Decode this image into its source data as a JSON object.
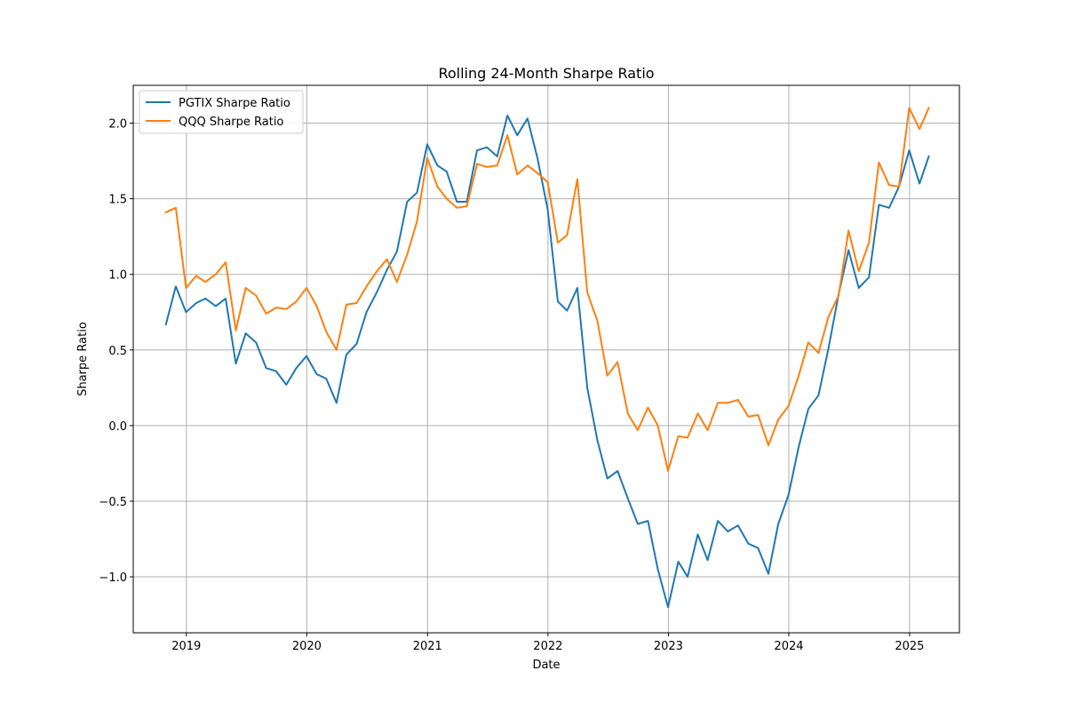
{
  "chart_data": {
    "type": "line",
    "title": "Rolling 24-Month Sharpe Ratio",
    "xlabel": "Date",
    "ylabel": "Sharpe Ratio",
    "xlim": [
      "2018-07-24",
      "2025-06-01"
    ],
    "ylim": [
      -1.37,
      2.25
    ],
    "grid": true,
    "legend": "top-left",
    "x_ticks": [
      "2019",
      "2020",
      "2021",
      "2022",
      "2023",
      "2024",
      "2025"
    ],
    "y_ticks": [
      -1.0,
      -0.5,
      0.0,
      0.5,
      1.0,
      1.5,
      2.0
    ],
    "y_tick_labels": [
      "−1.0",
      "−0.5",
      "0.0",
      "0.5",
      "1.0",
      "1.5",
      "2.0"
    ],
    "x": [
      "2018-10-31",
      "2018-11-30",
      "2018-12-31",
      "2019-01-31",
      "2019-02-28",
      "2019-03-31",
      "2019-04-30",
      "2019-05-31",
      "2019-06-30",
      "2019-07-31",
      "2019-08-31",
      "2019-09-30",
      "2019-10-31",
      "2019-11-30",
      "2019-12-31",
      "2020-01-31",
      "2020-02-29",
      "2020-03-31",
      "2020-04-30",
      "2020-05-31",
      "2020-06-30",
      "2020-07-31",
      "2020-08-31",
      "2020-09-30",
      "2020-10-31",
      "2020-11-30",
      "2020-12-31",
      "2021-01-31",
      "2021-02-28",
      "2021-03-31",
      "2021-04-30",
      "2021-05-31",
      "2021-06-30",
      "2021-07-31",
      "2021-08-31",
      "2021-09-30",
      "2021-10-31",
      "2021-11-30",
      "2021-12-31",
      "2022-01-31",
      "2022-02-28",
      "2022-03-31",
      "2022-04-30",
      "2022-05-31",
      "2022-06-30",
      "2022-07-31",
      "2022-08-31",
      "2022-09-30",
      "2022-10-31",
      "2022-11-30",
      "2022-12-31",
      "2023-01-31",
      "2023-02-28",
      "2023-03-31",
      "2023-04-30",
      "2023-05-31",
      "2023-06-30",
      "2023-07-31",
      "2023-08-31",
      "2023-09-30",
      "2023-10-31",
      "2023-11-30",
      "2023-12-31",
      "2024-01-31",
      "2024-02-29",
      "2024-03-31",
      "2024-04-30",
      "2024-05-31",
      "2024-06-30",
      "2024-07-31",
      "2024-08-31",
      "2024-09-30",
      "2024-10-31",
      "2024-11-30",
      "2024-12-31",
      "2025-01-31",
      "2025-02-28"
    ],
    "series": [
      {
        "name": "PGTIX Sharpe Ratio",
        "color": "#1f77b4",
        "values": [
          0.67,
          0.92,
          0.75,
          0.81,
          0.84,
          0.79,
          0.84,
          0.41,
          0.61,
          0.55,
          0.38,
          0.36,
          0.27,
          0.38,
          0.46,
          0.34,
          0.31,
          0.15,
          0.47,
          0.54,
          0.75,
          0.88,
          1.03,
          1.15,
          1.48,
          1.54,
          1.86,
          1.72,
          1.68,
          1.48,
          1.48,
          1.82,
          1.84,
          1.78,
          2.05,
          1.92,
          2.03,
          1.77,
          1.43,
          0.82,
          0.76,
          0.91,
          0.25,
          -0.1,
          -0.35,
          -0.3,
          -0.48,
          -0.65,
          -0.63,
          -0.95,
          -1.2,
          -0.9,
          -1.0,
          -0.72,
          -0.89,
          -0.63,
          -0.7,
          -0.66,
          -0.78,
          -0.81,
          -0.98,
          -0.65,
          -0.46,
          -0.14,
          0.11,
          0.2,
          0.51,
          0.87,
          1.16,
          0.91,
          0.98,
          1.46,
          1.44,
          1.58,
          1.82,
          1.6,
          1.78
        ]
      },
      {
        "name": "QQQ Sharpe Ratio",
        "color": "#ff7f0e",
        "values": [
          1.41,
          1.44,
          0.91,
          0.99,
          0.95,
          1.0,
          1.08,
          0.63,
          0.91,
          0.86,
          0.74,
          0.78,
          0.77,
          0.82,
          0.91,
          0.79,
          0.62,
          0.5,
          0.8,
          0.81,
          0.92,
          1.02,
          1.1,
          0.95,
          1.13,
          1.35,
          1.77,
          1.58,
          1.5,
          1.44,
          1.45,
          1.73,
          1.71,
          1.72,
          1.92,
          1.66,
          1.72,
          1.67,
          1.61,
          1.21,
          1.26,
          1.63,
          0.88,
          0.69,
          0.33,
          0.42,
          0.08,
          -0.03,
          0.12,
          0.0,
          -0.3,
          -0.07,
          -0.08,
          0.08,
          -0.03,
          0.15,
          0.15,
          0.17,
          0.06,
          0.07,
          -0.13,
          0.04,
          0.13,
          0.33,
          0.55,
          0.48,
          0.72,
          0.86,
          1.29,
          1.02,
          1.21,
          1.74,
          1.59,
          1.58,
          2.1,
          1.96,
          2.1
        ]
      }
    ]
  }
}
